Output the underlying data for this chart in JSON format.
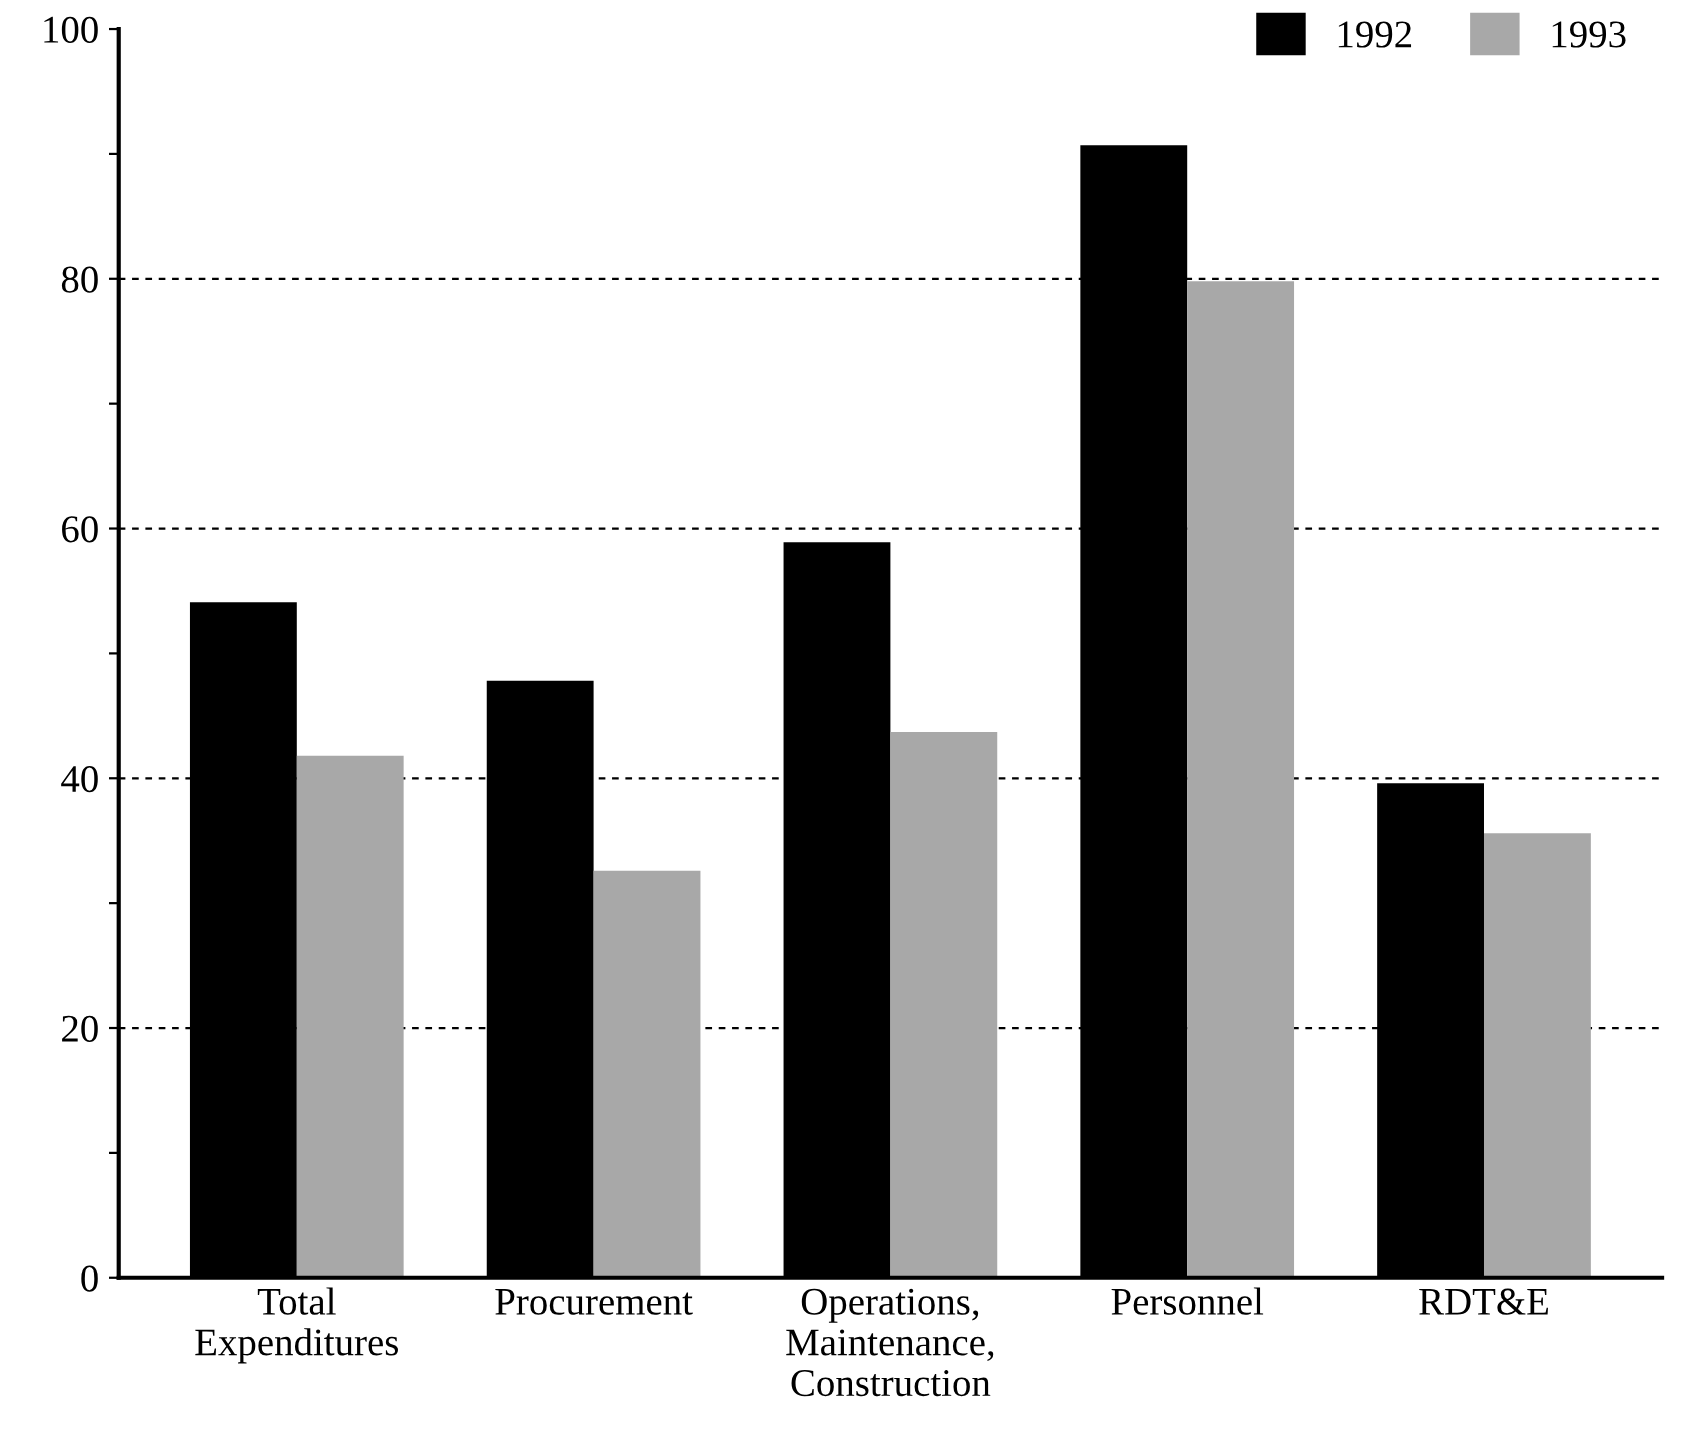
{
  "chart_data": {
    "type": "bar",
    "categories": [
      "Total\nExpenditures",
      "Procurement",
      "Operations,\nMaintenance,\nConstruction",
      "Personnel",
      "RDT&E"
    ],
    "series": [
      {
        "name": "1992",
        "color": "#000000",
        "values": [
          54.1,
          47.8,
          58.9,
          90.7,
          39.6
        ]
      },
      {
        "name": "1993",
        "color": "#a8a8a8",
        "values": [
          41.8,
          32.6,
          43.7,
          79.8,
          35.6
        ]
      }
    ],
    "ylim": [
      0,
      100
    ],
    "yticks": [
      0,
      {
        "value": 10,
        "label": null
      },
      20,
      {
        "value": 30,
        "label": null
      },
      40,
      {
        "value": 50,
        "label": null
      },
      60,
      {
        "value": 70,
        "label": null
      },
      80,
      {
        "value": 90,
        "label": null
      },
      100
    ],
    "grid": "y",
    "legend": "top right"
  }
}
